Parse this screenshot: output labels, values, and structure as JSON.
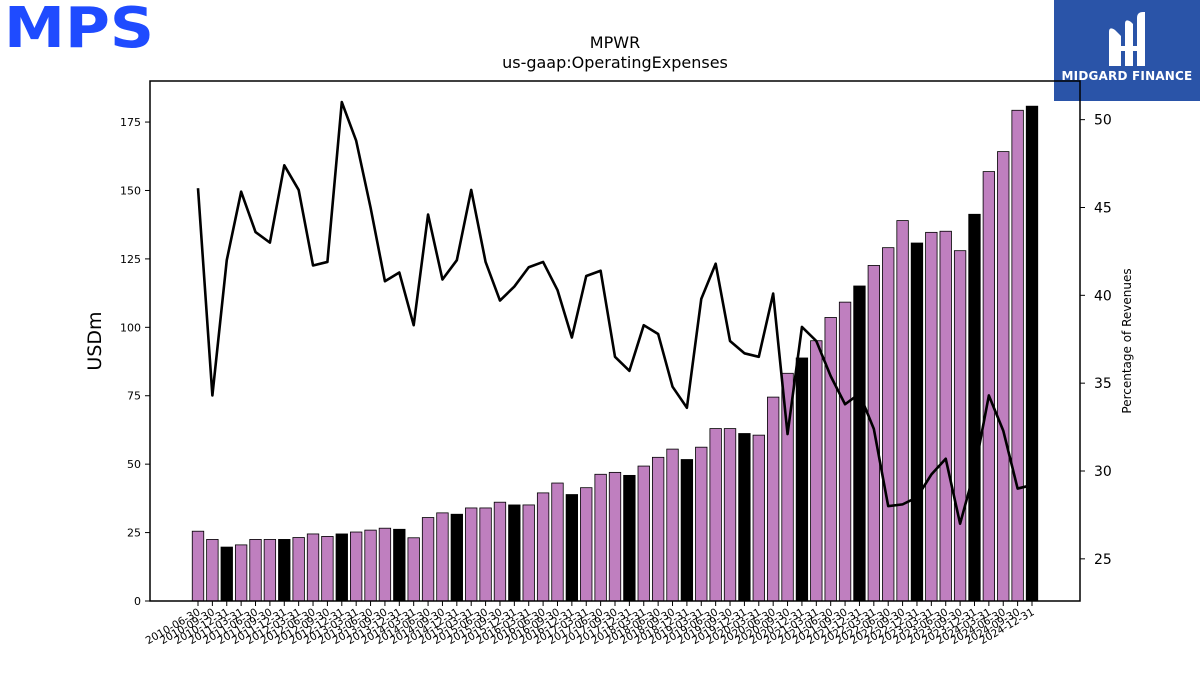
{
  "header": {
    "mps_logo": "MPS",
    "midgard_logo": "MIDGARD FINANCE"
  },
  "colors": {
    "bar_default": "#bf7fbf",
    "bar_highlight": "#000000",
    "line": "#000000",
    "midgard_bg": "#2a54a8",
    "mps_blue": "#1f4bff"
  },
  "chart_data": {
    "type": "bar",
    "title": "MPWR",
    "subtitle": "us-gaap:OperatingExpenses",
    "ylabel": "USDm",
    "y2label": "Percentage of Revenues",
    "ylim": [
      0,
      190
    ],
    "y2lim": [
      22.6,
      52.2
    ],
    "yticks": [
      0,
      25,
      50,
      75,
      100,
      125,
      150,
      175
    ],
    "y2ticks": [
      25,
      30,
      35,
      40,
      45,
      50
    ],
    "categories": [
      "2010-06-30",
      "2010-09-30",
      "2010-12-31",
      "2011-03-31",
      "2011-06-30",
      "2011-09-30",
      "2011-12-31",
      "2012-03-31",
      "2012-06-30",
      "2012-09-30",
      "2012-12-31",
      "2013-03-31",
      "2013-06-30",
      "2013-09-30",
      "2013-12-31",
      "2014-03-31",
      "2014-06-30",
      "2014-09-30",
      "2014-12-31",
      "2015-03-31",
      "2015-06-30",
      "2015-09-30",
      "2015-12-31",
      "2016-03-31",
      "2016-06-30",
      "2016-09-30",
      "2016-12-31",
      "2017-03-31",
      "2017-06-30",
      "2017-09-30",
      "2017-12-31",
      "2018-03-31",
      "2018-06-30",
      "2018-09-30",
      "2018-12-31",
      "2019-03-31",
      "2019-06-30",
      "2019-09-30",
      "2019-12-31",
      "2020-03-31",
      "2020-06-30",
      "2020-09-30",
      "2020-12-31",
      "2021-03-31",
      "2021-06-30",
      "2021-09-30",
      "2021-12-31",
      "2022-03-31",
      "2022-06-30",
      "2022-09-30",
      "2022-12-31",
      "2023-03-31",
      "2023-06-30",
      "2023-09-30",
      "2023-12-31",
      "2024-03-31",
      "2024-06-30",
      "2024-09-30",
      "2024-12-31"
    ],
    "highlight": [
      false,
      false,
      true,
      false,
      false,
      false,
      true,
      false,
      false,
      false,
      true,
      false,
      false,
      false,
      true,
      false,
      false,
      false,
      true,
      false,
      false,
      false,
      true,
      false,
      false,
      false,
      true,
      false,
      false,
      false,
      true,
      false,
      false,
      false,
      true,
      false,
      false,
      false,
      true,
      false,
      false,
      false,
      true,
      false,
      false,
      false,
      true,
      false,
      false,
      false,
      true,
      false,
      false,
      false,
      true,
      false,
      false,
      false,
      true
    ],
    "series": [
      {
        "values": [
          25.5,
          22.5,
          19.7,
          20.5,
          22.5,
          22.5,
          22.5,
          23.2,
          24.5,
          23.6,
          24.5,
          25.2,
          25.9,
          26.6,
          26.2,
          23.1,
          30.5,
          32.2,
          31.7,
          34.0,
          34.0,
          36.1,
          35.1,
          35.1,
          39.5,
          43.1,
          38.9,
          41.4,
          46.3,
          47.0,
          45.9,
          49.3,
          52.5,
          55.5,
          51.7,
          56.2,
          63.0,
          63.0,
          61.2,
          60.6,
          74.5,
          83.2,
          88.8,
          95.1,
          103.6,
          109.2,
          115.1,
          122.6,
          129.1,
          139.0,
          130.8,
          134.7,
          135.1,
          128.0,
          141.3,
          156.9,
          164.2,
          179.3,
          180.8
        ]
      },
      {
        "axis": "right",
        "values": [
          46.1,
          34.3,
          42.0,
          45.9,
          43.6,
          43.0,
          47.4,
          46.0,
          41.7,
          41.9,
          51.0,
          48.8,
          45.0,
          40.8,
          41.3,
          38.3,
          44.6,
          40.9,
          42.0,
          46.0,
          41.9,
          39.7,
          40.5,
          41.6,
          41.9,
          40.3,
          37.6,
          41.1,
          41.4,
          36.5,
          35.7,
          38.3,
          37.8,
          34.8,
          33.6,
          39.8,
          41.8,
          37.4,
          36.7,
          36.5,
          40.1,
          32.1,
          38.2,
          37.4,
          35.4,
          33.8,
          34.4,
          32.4,
          28.0,
          28.1,
          28.5,
          29.8,
          30.7,
          27.0,
          30.0,
          34.3,
          32.3,
          29.0,
          29.2
        ]
      }
    ]
  }
}
